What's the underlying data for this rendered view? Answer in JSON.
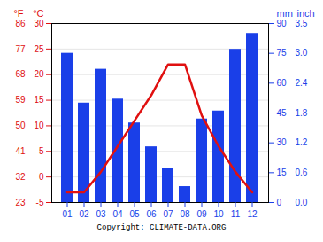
{
  "chart_data": {
    "type": "bar",
    "categories": [
      "01",
      "02",
      "03",
      "04",
      "05",
      "06",
      "07",
      "08",
      "09",
      "10",
      "11",
      "12"
    ],
    "series": [
      {
        "type": "bar",
        "axis": "y2",
        "color": "#1a3fe8",
        "values": [
          75,
          50,
          67,
          52,
          40,
          28,
          17,
          8,
          42,
          46,
          77,
          85
        ]
      },
      {
        "type": "line",
        "color": "#e01010",
        "values": [
          -3,
          -3,
          1,
          6,
          11,
          16,
          22,
          22,
          12,
          6,
          1,
          -3
        ]
      }
    ],
    "ylabel": "°C",
    "ylim": [
      -5,
      30
    ],
    "yticks": [
      -5,
      0,
      5,
      10,
      15,
      20,
      25,
      30
    ],
    "ylabel_f": "°F",
    "yticks_f": [
      {
        "value": -5,
        "label": "23"
      },
      {
        "value": 0,
        "label": "32"
      },
      {
        "value": 5,
        "label": "41"
      },
      {
        "value": 10,
        "label": "50"
      },
      {
        "value": 15,
        "label": "59"
      },
      {
        "value": 20,
        "label": "68"
      },
      {
        "value": 25,
        "label": "77"
      },
      {
        "value": 30,
        "label": "86"
      }
    ],
    "y2label": "mm",
    "y2lim": [
      0,
      90
    ],
    "y2ticks": [
      0,
      15,
      30,
      45,
      60,
      75,
      90
    ],
    "y2label_inch": "inch",
    "y2ticks_inch": [
      {
        "value": 0,
        "label": "0.0"
      },
      {
        "value": 15,
        "label": "0.6"
      },
      {
        "value": 30,
        "label": "1.2"
      },
      {
        "value": 45,
        "label": "1.8"
      },
      {
        "value": 60,
        "label": "2.4"
      },
      {
        "value": 75,
        "label": "3.0"
      },
      {
        "value": 90,
        "label": "3.5"
      }
    ],
    "grid": true,
    "annotations": [
      "Copyright: CLIMATE-DATA.ORG"
    ]
  }
}
